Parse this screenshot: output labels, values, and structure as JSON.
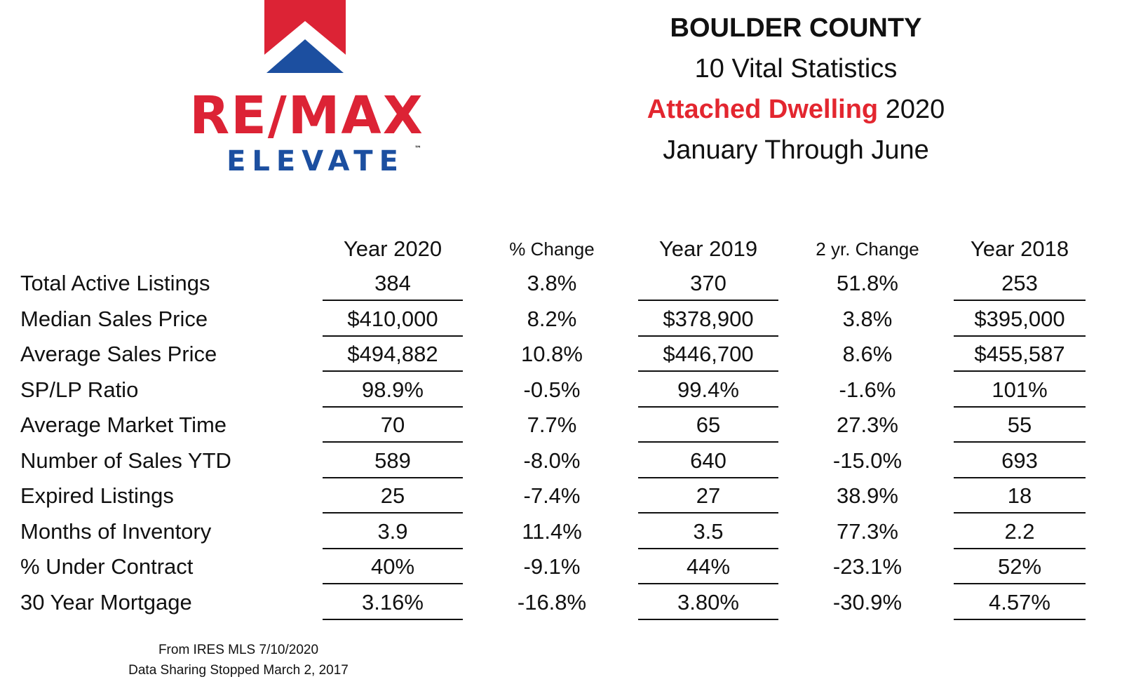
{
  "logo": {
    "wordmark": "RE/MAX",
    "tagline": "ELEVATE",
    "trademark": "™",
    "colors": {
      "red": "#dc2335",
      "blue": "#1c4fa0"
    }
  },
  "title": {
    "line1": "BOULDER COUNTY",
    "line2": "10 Vital Statistics",
    "line3_accent": "Attached Dwelling",
    "line3_rest": " 2020",
    "line4": "January Through June",
    "accent_color": "#e3262f"
  },
  "table": {
    "headers": [
      "Year 2020",
      "% Change",
      "Year 2019",
      "2 yr. Change",
      "Year 2018"
    ],
    "rows": [
      {
        "label": "Total Active Listings",
        "values": [
          "384",
          "3.8%",
          "370",
          "51.8%",
          "253"
        ]
      },
      {
        "label": "Median Sales Price",
        "values": [
          "$410,000",
          "8.2%",
          "$378,900",
          "3.8%",
          "$395,000"
        ]
      },
      {
        "label": "Average Sales Price",
        "values": [
          "$494,882",
          "10.8%",
          "$446,700",
          "8.6%",
          "$455,587"
        ]
      },
      {
        "label": "SP/LP Ratio",
        "values": [
          "98.9%",
          "-0.5%",
          "99.4%",
          "-1.6%",
          "101%"
        ]
      },
      {
        "label": "Average Market Time",
        "values": [
          "70",
          "7.7%",
          "65",
          "27.3%",
          "55"
        ]
      },
      {
        "label": "Number of Sales YTD",
        "values": [
          "589",
          "-8.0%",
          "640",
          "-15.0%",
          "693"
        ]
      },
      {
        "label": "Expired Listings",
        "values": [
          "25",
          "-7.4%",
          "27",
          "38.9%",
          "18"
        ]
      },
      {
        "label": "Months of Inventory",
        "values": [
          "3.9",
          "11.4%",
          "3.5",
          "77.3%",
          "2.2"
        ]
      },
      {
        "label": "% Under Contract",
        "values": [
          "40%",
          "-9.1%",
          "44%",
          "-23.1%",
          "52%"
        ]
      },
      {
        "label": "30 Year Mortgage",
        "values": [
          "3.16%",
          "-16.8%",
          "3.80%",
          "-30.9%",
          "4.57%"
        ]
      }
    ]
  },
  "footer": {
    "line1": "From IRES MLS 7/10/2020",
    "line2": "Data Sharing Stopped March 2, 2017"
  }
}
